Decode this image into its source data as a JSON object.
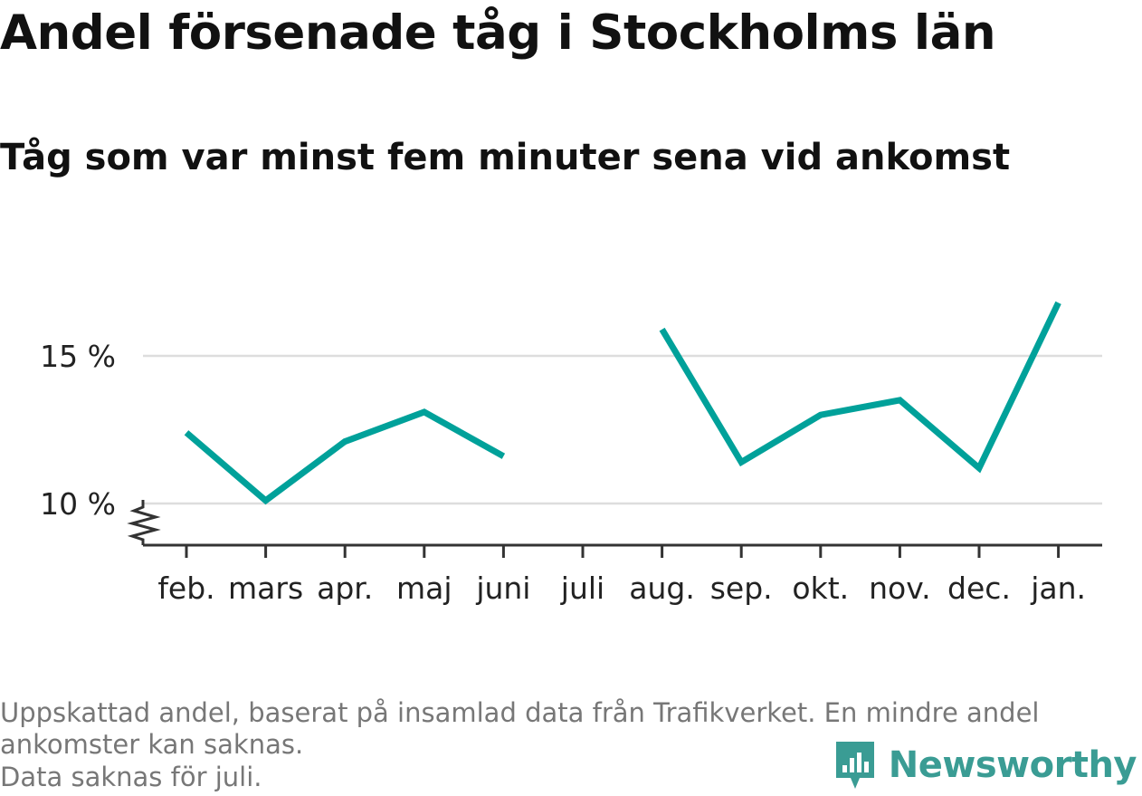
{
  "title": "Andel försenade tåg i Stockholms län",
  "subtitle": "Tåg som var minst fem minuter sena vid ankomst",
  "footnote": {
    "line1": "Uppskattad andel, baserat på insamlad data från Trafikverket. En mindre andel ankomster kan saknas.",
    "line2": "Data saknas för juli."
  },
  "brand": {
    "name": "Newsworthy",
    "color": "#3a9c94"
  },
  "colors": {
    "line": "#00a19a",
    "grid": "#dddddd",
    "axis": "#333333"
  },
  "chart_data": {
    "type": "line",
    "title": "Andel försenade tåg i Stockholms län",
    "subtitle": "Tåg som var minst fem minuter sena vid ankomst",
    "xlabel": "",
    "ylabel": "",
    "unit": "%",
    "categories": [
      "feb.",
      "mars",
      "apr.",
      "maj",
      "juni",
      "juli",
      "aug.",
      "sep.",
      "okt.",
      "nov.",
      "dec.",
      "jan."
    ],
    "series": [
      {
        "values": [
          12.4,
          10.1,
          12.1,
          13.1,
          11.6,
          null,
          15.9,
          11.4,
          13.0,
          13.5,
          11.2,
          16.8
        ]
      }
    ],
    "yticks": [
      10,
      15
    ],
    "ytick_labels": [
      "10 %",
      "15 %"
    ],
    "ylim": [
      8.6,
      17.5
    ],
    "axis_break": true,
    "grid": true,
    "legend": "none"
  }
}
